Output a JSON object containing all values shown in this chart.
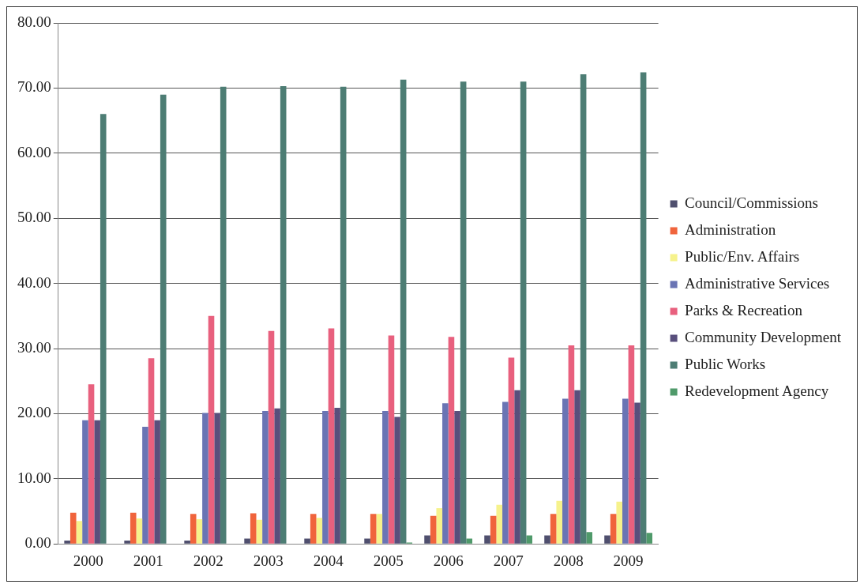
{
  "chart_data": {
    "type": "bar",
    "categories": [
      "2000",
      "2001",
      "2002",
      "2003",
      "2004",
      "2005",
      "2006",
      "2007",
      "2008",
      "2009"
    ],
    "series": [
      {
        "name": "Council/Commissions",
        "color": "#4f4f6e",
        "values": [
          0.5,
          0.5,
          0.5,
          0.8,
          0.8,
          0.8,
          1.3,
          1.3,
          1.3,
          1.3
        ]
      },
      {
        "name": "Administration",
        "color": "#f0643c",
        "values": [
          4.8,
          4.8,
          4.6,
          4.7,
          4.6,
          4.6,
          4.3,
          4.3,
          4.6,
          4.6
        ]
      },
      {
        "name": "Public/Env. Affairs",
        "color": "#f6f28c",
        "values": [
          3.5,
          3.9,
          3.8,
          3.7,
          4.0,
          4.6,
          5.5,
          6.0,
          6.6,
          6.5
        ]
      },
      {
        "name": "Administrative Services",
        "color": "#6a74b4",
        "values": [
          19.0,
          18.0,
          20.1,
          20.4,
          20.4,
          20.4,
          21.6,
          21.8,
          22.3,
          22.3
        ]
      },
      {
        "name": "Parks & Recreation",
        "color": "#e8607e",
        "values": [
          24.5,
          28.5,
          35.0,
          32.7,
          33.1,
          32.0,
          31.8,
          28.6,
          30.5,
          30.5
        ]
      },
      {
        "name": "Community Development",
        "color": "#584f7c",
        "values": [
          19.0,
          19.0,
          20.1,
          20.8,
          20.9,
          19.5,
          20.4,
          23.6,
          23.6,
          21.7
        ]
      },
      {
        "name": "Public Works",
        "color": "#4d7d74",
        "values": [
          66.0,
          69.0,
          70.2,
          70.3,
          70.2,
          71.3,
          71.0,
          71.0,
          72.1,
          72.4
        ]
      },
      {
        "name": "Redevelopment Agency",
        "color": "#4f9a6a",
        "values": [
          0,
          0,
          0,
          0,
          0,
          0.2,
          0.8,
          1.3,
          1.8,
          1.7
        ]
      }
    ],
    "ylim": [
      0,
      80
    ],
    "yticks": [
      {
        "value": 0,
        "label": "0.00"
      },
      {
        "value": 10,
        "label": "10.00"
      },
      {
        "value": 20,
        "label": "20.00"
      },
      {
        "value": 30,
        "label": "30.00"
      },
      {
        "value": 40,
        "label": "40.00"
      },
      {
        "value": 50,
        "label": "50.00"
      },
      {
        "value": 60,
        "label": "60.00"
      },
      {
        "value": 70,
        "label": "70.00"
      },
      {
        "value": 80,
        "label": "80.00"
      }
    ],
    "grid": "y",
    "legend": "right"
  }
}
